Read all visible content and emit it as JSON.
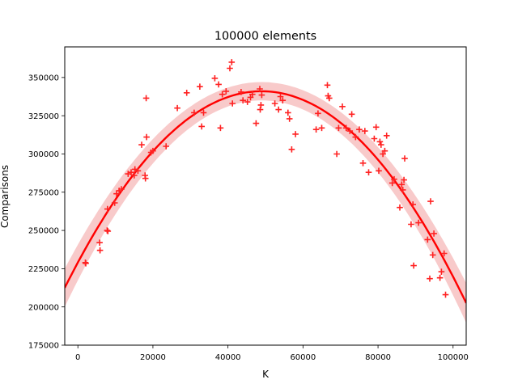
{
  "chart_data": {
    "type": "scatter",
    "title": "100000 elements",
    "xlabel": "K",
    "ylabel": "Comparisons",
    "xlim": [
      -3500,
      103500
    ],
    "ylim": [
      175000,
      370000
    ],
    "xticks": [
      0,
      20000,
      40000,
      60000,
      80000,
      100000
    ],
    "xtick_labels": [
      "0",
      "20000",
      "40000",
      "60000",
      "80000",
      "100000"
    ],
    "yticks": [
      175000,
      200000,
      225000,
      250000,
      275000,
      300000,
      325000,
      350000
    ],
    "ytick_labels": [
      "175000",
      "200000",
      "225000",
      "250000",
      "275000",
      "300000",
      "325000",
      "350000"
    ],
    "grid": false,
    "legend": "none",
    "marker_color": "#ff2222",
    "fit_color": "#ff0000",
    "band_color": "#f5b8b8",
    "series": [
      {
        "marker": "+",
        "points": [
          [
            2000,
            229000
          ],
          [
            2100,
            228500
          ],
          [
            5800,
            242000
          ],
          [
            5900,
            237000
          ],
          [
            7800,
            250000
          ],
          [
            7900,
            264000
          ],
          [
            8000,
            249500
          ],
          [
            9800,
            268000
          ],
          [
            10300,
            274000
          ],
          [
            11000,
            276000
          ],
          [
            11600,
            277000
          ],
          [
            13400,
            287000
          ],
          [
            14200,
            288000
          ],
          [
            15000,
            286000
          ],
          [
            15200,
            290000
          ],
          [
            16000,
            289000
          ],
          [
            17000,
            306000
          ],
          [
            17900,
            286000
          ],
          [
            18000,
            284000
          ],
          [
            18200,
            336500
          ],
          [
            18300,
            311000
          ],
          [
            19500,
            301000
          ],
          [
            20000,
            302000
          ],
          [
            23500,
            305000
          ],
          [
            26500,
            330000
          ],
          [
            29000,
            340000
          ],
          [
            31000,
            327000
          ],
          [
            32500,
            344000
          ],
          [
            33000,
            318000
          ],
          [
            33500,
            327000
          ],
          [
            36500,
            349500
          ],
          [
            37500,
            345500
          ],
          [
            38000,
            317000
          ],
          [
            38500,
            339000
          ],
          [
            39500,
            341000
          ],
          [
            40500,
            356000
          ],
          [
            41000,
            360000
          ],
          [
            41200,
            333000
          ],
          [
            43500,
            340500
          ],
          [
            44000,
            335000
          ],
          [
            45200,
            334000
          ],
          [
            46000,
            337000
          ],
          [
            46500,
            339000
          ],
          [
            47500,
            320000
          ],
          [
            48500,
            342500
          ],
          [
            48600,
            329000
          ],
          [
            48800,
            332000
          ],
          [
            49000,
            338500
          ],
          [
            52500,
            333000
          ],
          [
            53500,
            329000
          ],
          [
            54000,
            337500
          ],
          [
            54600,
            335000
          ],
          [
            56000,
            327000
          ],
          [
            56400,
            323000
          ],
          [
            57000,
            303000
          ],
          [
            58000,
            313000
          ],
          [
            63500,
            316000
          ],
          [
            64000,
            326500
          ],
          [
            65000,
            317000
          ],
          [
            66500,
            345000
          ],
          [
            66700,
            338000
          ],
          [
            67000,
            336500
          ],
          [
            69000,
            300000
          ],
          [
            69500,
            317000
          ],
          [
            70500,
            331000
          ],
          [
            71500,
            317000
          ],
          [
            72500,
            315000
          ],
          [
            73000,
            326000
          ],
          [
            74000,
            311000
          ],
          [
            75000,
            316000
          ],
          [
            76000,
            294000
          ],
          [
            76500,
            315000
          ],
          [
            77500,
            288000
          ],
          [
            79000,
            310000
          ],
          [
            79500,
            317500
          ],
          [
            80500,
            308000
          ],
          [
            80200,
            289000
          ],
          [
            80800,
            306000
          ],
          [
            81300,
            300000
          ],
          [
            81800,
            302000
          ],
          [
            82300,
            312000
          ],
          [
            83800,
            281000
          ],
          [
            84300,
            283500
          ],
          [
            85800,
            265000
          ],
          [
            86300,
            280000
          ],
          [
            86600,
            276500
          ],
          [
            86900,
            283000
          ],
          [
            87100,
            297000
          ],
          [
            88800,
            254000
          ],
          [
            89300,
            267000
          ],
          [
            89500,
            227000
          ],
          [
            90800,
            255000
          ],
          [
            93200,
            244000
          ],
          [
            93800,
            218500
          ],
          [
            94000,
            269000
          ],
          [
            94600,
            234000
          ],
          [
            94900,
            248000
          ],
          [
            96500,
            219000
          ],
          [
            96900,
            223000
          ],
          [
            97600,
            235000
          ],
          [
            98000,
            208000
          ]
        ]
      }
    ],
    "fit": {
      "order": 2,
      "peak_x": 49000,
      "peak_y": 341000,
      "y_at_xmin": 212500,
      "band_halfwidth_edge": 13000,
      "band_halfwidth_center": 6000
    }
  }
}
